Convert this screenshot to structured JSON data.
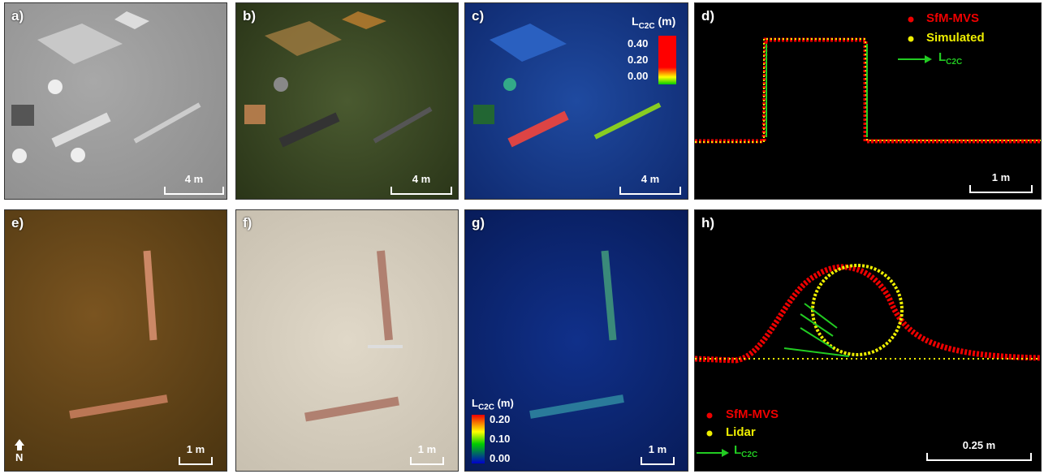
{
  "panels": {
    "a": {
      "label": "a)",
      "scale_bar": "4 m"
    },
    "b": {
      "label": "b)",
      "scale_bar": "4 m"
    },
    "c": {
      "label": "c)",
      "scale_bar": "4 m",
      "colorbar": {
        "symbol": "L",
        "subscript": "C2C",
        "unit": "(m)",
        "ticks": [
          "0.40",
          "0.20",
          "0.00"
        ]
      }
    },
    "d": {
      "label": "d)",
      "scale_bar": "1 m",
      "legend": [
        "SfM-MVS",
        "Simulated"
      ],
      "arrow_symbol": "L",
      "arrow_subscript": "C2C"
    },
    "e": {
      "label": "e)",
      "scale_bar": "1 m",
      "north": "N"
    },
    "f": {
      "label": "f)",
      "scale_bar": "1 m"
    },
    "g": {
      "label": "g)",
      "scale_bar": "1 m",
      "colorbar": {
        "symbol": "L",
        "subscript": "C2C",
        "unit": "(m)",
        "ticks": [
          "0.20",
          "0.10",
          "0.00"
        ]
      }
    },
    "h": {
      "label": "h)",
      "scale_bar": "0.25 m",
      "legend": [
        "SfM-MVS",
        "Lidar"
      ],
      "arrow_symbol": "L",
      "arrow_subscript": "C2C"
    }
  }
}
